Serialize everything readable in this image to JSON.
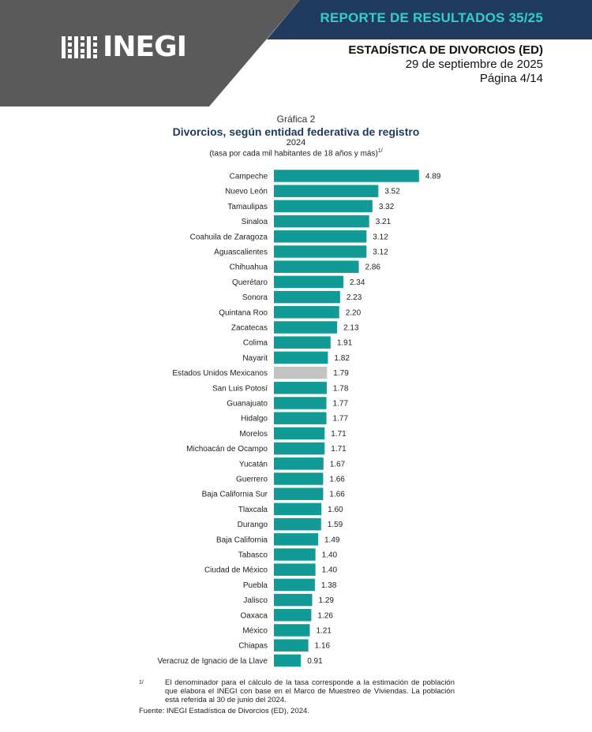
{
  "header": {
    "logo_text": "INEGI",
    "report_title": "REPORTE DE RESULTADOS 35/25",
    "doc_title": "ESTADÍSTICA DE DIVORCIOS (ED)",
    "date": "29 de septiembre de 2025",
    "page": "Página 4/14"
  },
  "colors": {
    "bar": "#129a96",
    "national_bar": "#c3c3c3",
    "header_dark": "#5a5a5a",
    "header_navy": "#1f3a5d",
    "accent": "#2fd0c8"
  },
  "chart_data": {
    "type": "bar",
    "orientation": "horizontal",
    "label": "Gráfica 2",
    "title": "Divorcios, según entidad federativa de registro",
    "year": "2024",
    "subtitle": "(tasa por cada mil habitantes de 18 años y más)",
    "subtitle_note": "1/",
    "highlight": "Estados Unidos Mexicanos",
    "categories": [
      "Campeche",
      "Nuevo León",
      "Tamaulipas",
      "Sinaloa",
      "Coahuila de Zaragoza",
      "Aguascalientes",
      "Chihuahua",
      "Querétaro",
      "Sonora",
      "Quintana Roo",
      "Zacatecas",
      "Colima",
      "Nayarit",
      "Estados Unidos Mexicanos",
      "San Luis Potosí",
      "Guanajuato",
      "Hidalgo",
      "Morelos",
      "Michoacán de Ocampo",
      "Yucatán",
      "Guerrero",
      "Baja California Sur",
      "Tlaxcala",
      "Durango",
      "Baja California",
      "Tabasco",
      "Ciudad de México",
      "Puebla",
      "Jalisco",
      "Oaxaca",
      "México",
      "Chiapas",
      "Veracruz de Ignacio de la Llave"
    ],
    "values": [
      4.89,
      3.52,
      3.32,
      3.21,
      3.12,
      3.12,
      2.86,
      2.34,
      2.23,
      2.2,
      2.13,
      1.91,
      1.82,
      1.79,
      1.78,
      1.77,
      1.77,
      1.71,
      1.71,
      1.67,
      1.66,
      1.66,
      1.6,
      1.59,
      1.49,
      1.4,
      1.4,
      1.38,
      1.29,
      1.26,
      1.21,
      1.16,
      0.91
    ],
    "value_labels": [
      "4.89",
      "3.52",
      "3.32",
      "3.21",
      "3.12",
      "3.12",
      "2.86",
      "2.34",
      "2.23",
      "2.20",
      "2.13",
      "1.91",
      "1.82",
      "1.79",
      "1.78",
      "1.77",
      "1.77",
      "1.71",
      "1.71",
      "1.67",
      "1.66",
      "1.66",
      "1.60",
      "1.59",
      "1.49",
      "1.40",
      "1.40",
      "1.38",
      "1.29",
      "1.26",
      "1.21",
      "1.16",
      "0.91"
    ]
  },
  "footnote": {
    "mark": "1/",
    "text": "El denominador para el cálculo de la tasa corresponde a la estimación de población que elabora el INEGI con base en el Marco de Muestreo de Viviendas. La población está referida al 30 de junio del 2024."
  },
  "source": {
    "label": "Fuente:",
    "text": "INEGI Estadística de Divorcios (ED), 2024."
  }
}
